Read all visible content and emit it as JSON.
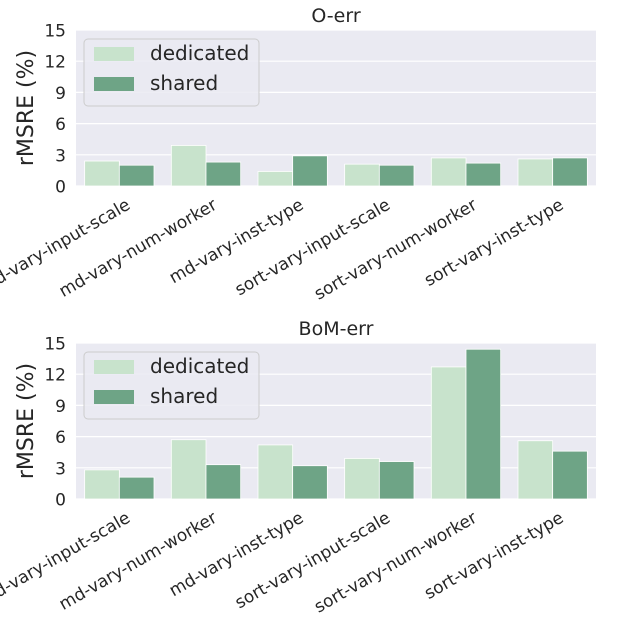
{
  "colors": {
    "background": "#ffffff",
    "plot_bg": "#eaeaf2",
    "grid": "#ffffff",
    "dedicated": "#c8e3cc",
    "shared": "#6ea486",
    "text": "#262626"
  },
  "chart_data": [
    {
      "type": "bar",
      "title": "O-err",
      "xlabel": "",
      "ylabel": "rMSRE (%)",
      "ylim": [
        0,
        15
      ],
      "yticks": [
        "0",
        "3",
        "6",
        "9",
        "12",
        "15"
      ],
      "grid": true,
      "legend": "top-left",
      "categories": [
        "md-vary-input-scale",
        "md-vary-num-worker",
        "md-vary-inst-type",
        "sort-vary-input-scale",
        "sort-vary-num-worker",
        "sort-vary-inst-type"
      ],
      "series": [
        {
          "name": "dedicated",
          "values": [
            2.4,
            3.9,
            1.4,
            2.1,
            2.7,
            2.6
          ]
        },
        {
          "name": "shared",
          "values": [
            2.0,
            2.3,
            2.9,
            2.0,
            2.2,
            2.7
          ]
        }
      ]
    },
    {
      "type": "bar",
      "title": "BoM-err",
      "xlabel": "",
      "ylabel": "rMSRE (%)",
      "ylim": [
        0,
        15
      ],
      "yticks": [
        "0",
        "3",
        "6",
        "9",
        "12",
        "15"
      ],
      "grid": true,
      "legend": "top-left",
      "categories": [
        "md-vary-input-scale",
        "md-vary-num-worker",
        "md-vary-inst-type",
        "sort-vary-input-scale",
        "sort-vary-num-worker",
        "sort-vary-inst-type"
      ],
      "series": [
        {
          "name": "dedicated",
          "values": [
            2.8,
            5.7,
            5.2,
            3.9,
            12.7,
            5.6
          ]
        },
        {
          "name": "shared",
          "values": [
            2.1,
            3.3,
            3.2,
            3.6,
            14.4,
            4.6
          ]
        }
      ]
    }
  ]
}
